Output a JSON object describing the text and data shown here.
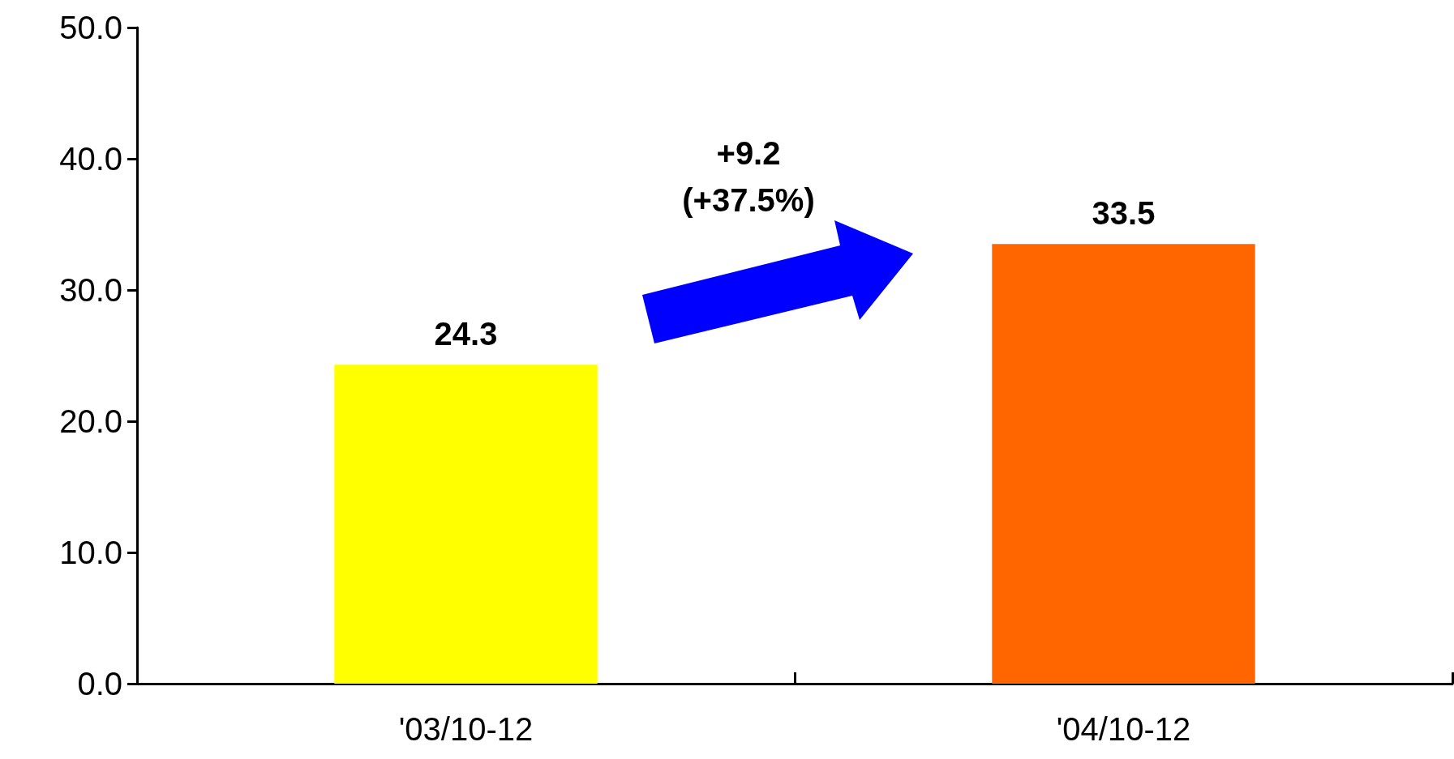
{
  "chart_data": {
    "type": "bar",
    "categories": [
      "'03/10-12",
      "'04/10-12"
    ],
    "values": [
      24.3,
      33.5
    ],
    "colors": [
      "#ffff00",
      "#ff6600"
    ],
    "ylim": [
      0,
      50
    ],
    "yticks": [
      {
        "value": 0,
        "label": "0.0"
      },
      {
        "value": 10,
        "label": "10.0"
      },
      {
        "value": 20,
        "label": "20.0"
      },
      {
        "value": 30,
        "label": "30.0"
      },
      {
        "value": 40,
        "label": "40.0"
      },
      {
        "value": 50,
        "label": "50.0"
      }
    ],
    "data_labels": true,
    "grid": false,
    "annotations": [
      "+9.2\n(+37.5%)"
    ]
  }
}
